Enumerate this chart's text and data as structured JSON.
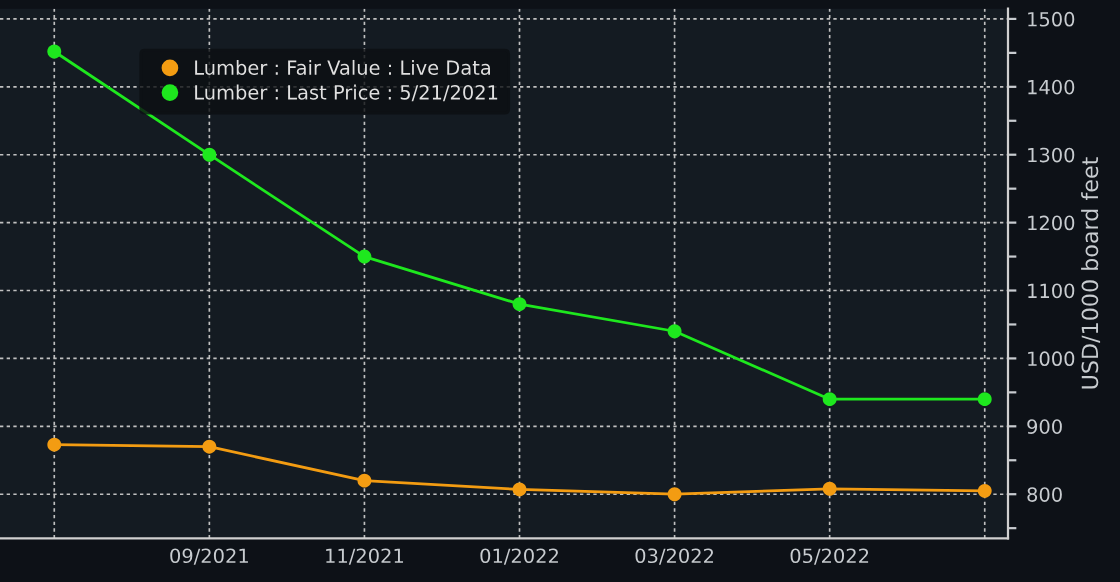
{
  "chart_data": {
    "type": "line",
    "ylabel": "USD/1000 board feet",
    "categories": [
      null,
      "09/2021",
      "11/2021",
      "01/2022",
      "03/2022",
      "05/2022",
      null
    ],
    "series": [
      {
        "name": "Lumber : Fair Value : Live Data",
        "color": "#f39c12",
        "values": [
          873,
          870,
          820,
          807,
          800,
          808,
          805
        ]
      },
      {
        "name": "Lumber : Last Price : 5/21/2021",
        "color": "#1ee81e",
        "values": [
          1452,
          1300,
          1150,
          1080,
          1040,
          940,
          940
        ]
      }
    ],
    "ylim": [
      735,
      1515
    ],
    "yticks": [
      {
        "value": 750,
        "label": null
      },
      800,
      {
        "value": 850,
        "label": null
      },
      900,
      {
        "value": 950,
        "label": null
      },
      1000,
      {
        "value": 1050,
        "label": null
      },
      1100,
      {
        "value": 1150,
        "label": null
      },
      1200,
      {
        "value": 1250,
        "label": null
      },
      1300,
      {
        "value": 1350,
        "label": null
      },
      1400,
      {
        "value": 1450,
        "label": null
      },
      1500
    ],
    "grid": true,
    "legend": "top left",
    "marker": "circle",
    "line_style": "solid"
  }
}
